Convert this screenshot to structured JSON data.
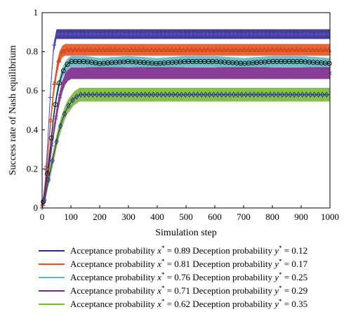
{
  "chart_data": {
    "type": "line",
    "title": "",
    "xlabel": "Simulation step",
    "ylabel": "Success rate of Nash equilibrium",
    "xlim": [
      0,
      1000
    ],
    "ylim": [
      0,
      1
    ],
    "xticks": [
      0,
      100,
      200,
      300,
      400,
      500,
      600,
      700,
      800,
      900,
      1000
    ],
    "yticks": [
      0,
      0.2,
      0.4,
      0.6,
      0.8,
      1
    ],
    "xtick_labels": [
      "0",
      "100",
      "200",
      "300",
      "400",
      "500",
      "600",
      "700",
      "800",
      "900",
      "1000"
    ],
    "ytick_labels": [
      "0",
      "0.2",
      "0.4",
      "0.6",
      "0.8",
      "1"
    ],
    "grid": false,
    "legend_position": "bottom",
    "series": [
      {
        "name": "Acceptance probability x* = 0.89 Deception probability y* = 0.12",
        "label_parts": {
          "a": "Acceptance probability ",
          "x": "x",
          "xval": " = 0.89 Deception probability ",
          "y": "y",
          "yval": " = 0.12"
        },
        "color": "#2e2a8a",
        "marker_color": "#5a4fcf",
        "marker": "plus",
        "band": 0.025,
        "x": [
          0,
          10,
          20,
          30,
          40,
          50,
          60,
          80,
          100,
          150,
          200,
          300,
          400,
          500,
          600,
          700,
          800,
          900,
          1000
        ],
        "y": [
          0,
          0.12,
          0.35,
          0.62,
          0.82,
          0.89,
          0.89,
          0.89,
          0.89,
          0.89,
          0.89,
          0.89,
          0.89,
          0.89,
          0.89,
          0.89,
          0.89,
          0.89,
          0.89
        ]
      },
      {
        "name": "Acceptance probability x* = 0.81 Deception probability y* = 0.17",
        "label_parts": {
          "a": "Acceptance probability ",
          "x": "x",
          "xval": " = 0.81 Deception probability ",
          "y": "y",
          "yval": " = 0.17"
        },
        "color": "#e8531f",
        "marker_color": "#c8411a",
        "marker": "triangle",
        "band": 0.03,
        "x": [
          0,
          10,
          20,
          30,
          40,
          50,
          60,
          70,
          80,
          100,
          150,
          200,
          300,
          400,
          500,
          600,
          700,
          800,
          900,
          1000
        ],
        "y": [
          0,
          0.1,
          0.27,
          0.45,
          0.6,
          0.7,
          0.77,
          0.8,
          0.81,
          0.81,
          0.81,
          0.81,
          0.81,
          0.81,
          0.81,
          0.81,
          0.81,
          0.81,
          0.81,
          0.81
        ]
      },
      {
        "name": "Acceptance probability x* = 0.76 Deception probability y* = 0.25",
        "label_parts": {
          "a": "Acceptance probability ",
          "x": "x",
          "xval": " = 0.76 Deception probability ",
          "y": "y",
          "yval": " = 0.25"
        },
        "color": "#5fb8c2",
        "marker_color": "#000000",
        "marker": "circle",
        "band": 0.028,
        "x": [
          0,
          10,
          20,
          30,
          40,
          50,
          60,
          70,
          80,
          90,
          100,
          150,
          200,
          300,
          400,
          500,
          600,
          700,
          800,
          900,
          1000
        ],
        "y": [
          0,
          0.08,
          0.2,
          0.33,
          0.47,
          0.57,
          0.64,
          0.69,
          0.72,
          0.74,
          0.75,
          0.75,
          0.74,
          0.75,
          0.74,
          0.75,
          0.75,
          0.74,
          0.75,
          0.75,
          0.74
        ]
      },
      {
        "name": "Acceptance probability x* = 0.71 Deception probability y* = 0.29",
        "label_parts": {
          "a": "Acceptance probability ",
          "x": "x",
          "xval": " = 0.71 Deception probability ",
          "y": "y",
          "yval": " = 0.29"
        },
        "color": "#7a2a8c",
        "marker_color": "#8a3a9c",
        "marker": "cross",
        "band": 0.03,
        "x": [
          0,
          10,
          20,
          30,
          40,
          50,
          60,
          70,
          80,
          90,
          100,
          110,
          150,
          200,
          300,
          400,
          500,
          600,
          700,
          800,
          900,
          1000
        ],
        "y": [
          0,
          0.07,
          0.17,
          0.28,
          0.39,
          0.48,
          0.56,
          0.62,
          0.66,
          0.68,
          0.69,
          0.69,
          0.69,
          0.69,
          0.69,
          0.69,
          0.69,
          0.69,
          0.69,
          0.69,
          0.69,
          0.69
        ]
      },
      {
        "name": "Acceptance probability x* = 0.62 Deception probability y* = 0.35",
        "label_parts": {
          "a": "Acceptance probability ",
          "x": "x",
          "xval": " = 0.62 Deception probability ",
          "y": "y",
          "yval": " = 0.35"
        },
        "color": "#7ab83a",
        "marker_color": "#1f2a8a",
        "marker": "diamond",
        "band": 0.035,
        "x": [
          0,
          10,
          20,
          30,
          40,
          50,
          60,
          70,
          80,
          90,
          100,
          110,
          120,
          130,
          150,
          200,
          300,
          400,
          500,
          600,
          700,
          800,
          900,
          1000
        ],
        "y": [
          0,
          0.05,
          0.13,
          0.2,
          0.27,
          0.34,
          0.4,
          0.45,
          0.49,
          0.52,
          0.54,
          0.56,
          0.57,
          0.58,
          0.58,
          0.58,
          0.58,
          0.58,
          0.58,
          0.58,
          0.58,
          0.58,
          0.58,
          0.58
        ]
      }
    ]
  }
}
